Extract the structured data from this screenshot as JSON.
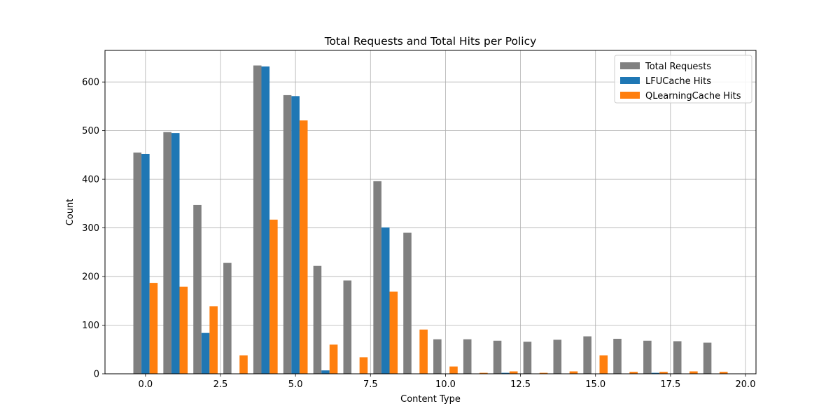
{
  "chart_data": {
    "type": "bar",
    "title": "Total Requests and Total Hits per Policy",
    "xlabel": "Content Type",
    "ylabel": "Count",
    "xlim": [
      -1.35,
      20.35
    ],
    "ylim": [
      0,
      665
    ],
    "xticks": [
      "0.0",
      "2.5",
      "5.0",
      "7.5",
      "10.0",
      "12.5",
      "15.0",
      "17.5",
      "20.0"
    ],
    "yticks": [
      "0",
      "100",
      "200",
      "300",
      "400",
      "500",
      "600"
    ],
    "grid": true,
    "legend_position": "upper right",
    "bar_width": 0.27,
    "x": [
      0,
      1,
      2,
      3,
      4,
      5,
      6,
      7,
      8,
      9,
      10,
      11,
      12,
      13,
      14,
      15,
      16,
      17,
      18,
      19
    ],
    "series": [
      {
        "name": "Total Requests",
        "color": "#808080",
        "offset": -0.27,
        "values": [
          455,
          497,
          347,
          228,
          634,
          573,
          222,
          192,
          396,
          290,
          71,
          71,
          68,
          66,
          70,
          77,
          72,
          68,
          67,
          64
        ]
      },
      {
        "name": "LFUCache Hits",
        "color": "#1f77b4",
        "offset": 0,
        "values": [
          452,
          495,
          84,
          0,
          632,
          571,
          7,
          0,
          301,
          0,
          0,
          0,
          2,
          0,
          0,
          0,
          0,
          2,
          0,
          0
        ]
      },
      {
        "name": "QLearningCache Hits",
        "color": "#ff7f0e",
        "offset": 0.27,
        "values": [
          187,
          179,
          139,
          38,
          317,
          521,
          60,
          34,
          169,
          91,
          15,
          2,
          5,
          2,
          5,
          38,
          4,
          4,
          5,
          4
        ]
      }
    ]
  }
}
